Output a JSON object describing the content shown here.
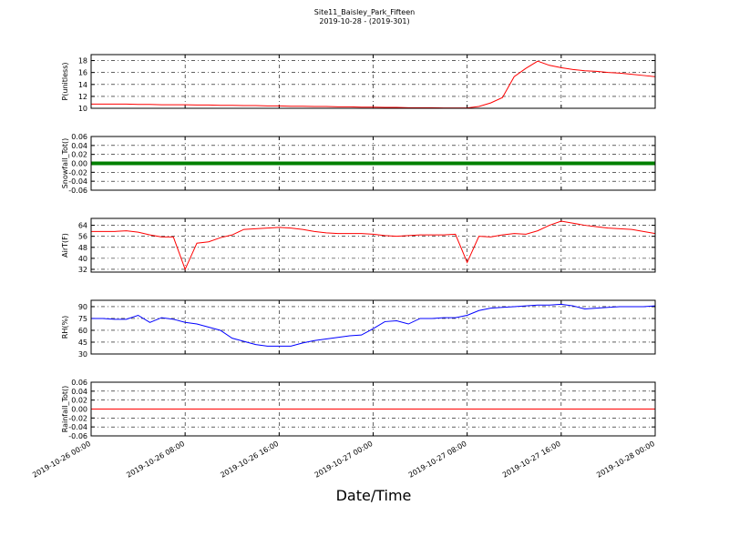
{
  "title": "Site11_Baisley_Park_Fifteen",
  "subtitle": "2019-10-28 - (2019-301)",
  "xlabel": "Date/Time",
  "chart_data": [
    {
      "type": "line",
      "ylabel": "P(unitless)",
      "color": "#ff0000",
      "grid": true,
      "x": [
        "2019-10-26 00:00",
        "2019-10-26 01:00",
        "2019-10-26 02:00",
        "2019-10-26 03:00",
        "2019-10-26 04:00",
        "2019-10-26 05:00",
        "2019-10-26 06:00",
        "2019-10-26 07:00",
        "2019-10-26 08:00",
        "2019-10-26 09:00",
        "2019-10-26 10:00",
        "2019-10-26 11:00",
        "2019-10-26 12:00",
        "2019-10-26 13:00",
        "2019-10-26 14:00",
        "2019-10-26 15:00",
        "2019-10-26 16:00",
        "2019-10-26 17:00",
        "2019-10-26 18:00",
        "2019-10-26 19:00",
        "2019-10-26 20:00",
        "2019-10-26 21:00",
        "2019-10-26 22:00",
        "2019-10-26 23:00",
        "2019-10-27 00:00",
        "2019-10-27 01:00",
        "2019-10-27 02:00",
        "2019-10-27 03:00",
        "2019-10-27 04:00",
        "2019-10-27 05:00",
        "2019-10-27 06:00",
        "2019-10-27 07:00",
        "2019-10-27 08:00",
        "2019-10-27 09:00",
        "2019-10-27 10:00",
        "2019-10-27 11:00",
        "2019-10-27 12:00",
        "2019-10-27 13:00",
        "2019-10-27 14:00",
        "2019-10-27 15:00",
        "2019-10-27 16:00",
        "2019-10-27 17:00",
        "2019-10-27 18:00",
        "2019-10-27 19:00",
        "2019-10-27 20:00",
        "2019-10-27 21:00",
        "2019-10-27 22:00",
        "2019-10-27 23:00",
        "2019-10-28 00:00"
      ],
      "xlim": [
        "2019-10-26 00:00",
        "2019-10-28 00:00"
      ],
      "xticks": [
        "2019-10-26 00:00",
        "2019-10-26 08:00",
        "2019-10-26 16:00",
        "2019-10-27 00:00",
        "2019-10-27 08:00",
        "2019-10-27 16:00",
        "2019-10-28 00:00"
      ],
      "ylim": [
        10,
        19
      ],
      "yticks": [
        10,
        12,
        14,
        16,
        18
      ],
      "values": [
        10.7,
        10.7,
        10.7,
        10.7,
        10.65,
        10.65,
        10.6,
        10.6,
        10.6,
        10.55,
        10.55,
        10.5,
        10.5,
        10.45,
        10.45,
        10.4,
        10.4,
        10.35,
        10.35,
        10.3,
        10.3,
        10.25,
        10.25,
        10.2,
        10.2,
        10.15,
        10.15,
        10.1,
        10.1,
        10.1,
        10.05,
        10.05,
        10.05,
        10.3,
        10.9,
        11.8,
        15.3,
        16.7,
        17.9,
        17.2,
        16.8,
        16.5,
        16.3,
        16.2,
        16.0,
        15.9,
        15.7,
        15.5,
        15.3
      ]
    },
    {
      "type": "line",
      "ylabel": "Snowfall_Tot()",
      "color": "#008000",
      "grid": true,
      "thick": true,
      "x": [
        "2019-10-26 00:00",
        "2019-10-26 01:00",
        "2019-10-26 02:00",
        "2019-10-26 03:00",
        "2019-10-26 04:00",
        "2019-10-26 05:00",
        "2019-10-26 06:00",
        "2019-10-26 07:00",
        "2019-10-26 08:00",
        "2019-10-26 09:00",
        "2019-10-26 10:00",
        "2019-10-26 11:00",
        "2019-10-26 12:00",
        "2019-10-26 13:00",
        "2019-10-26 14:00",
        "2019-10-26 15:00",
        "2019-10-26 16:00",
        "2019-10-26 17:00",
        "2019-10-26 18:00",
        "2019-10-26 19:00",
        "2019-10-26 20:00",
        "2019-10-26 21:00",
        "2019-10-26 22:00",
        "2019-10-26 23:00",
        "2019-10-27 00:00",
        "2019-10-27 01:00",
        "2019-10-27 02:00",
        "2019-10-27 03:00",
        "2019-10-27 04:00",
        "2019-10-27 05:00",
        "2019-10-27 06:00",
        "2019-10-27 07:00",
        "2019-10-27 08:00",
        "2019-10-27 09:00",
        "2019-10-27 10:00",
        "2019-10-27 11:00",
        "2019-10-27 12:00",
        "2019-10-27 13:00",
        "2019-10-27 14:00",
        "2019-10-27 15:00",
        "2019-10-27 16:00",
        "2019-10-27 17:00",
        "2019-10-27 18:00",
        "2019-10-27 19:00",
        "2019-10-27 20:00",
        "2019-10-27 21:00",
        "2019-10-27 22:00",
        "2019-10-27 23:00",
        "2019-10-28 00:00"
      ],
      "xlim": [
        "2019-10-26 00:00",
        "2019-10-28 00:00"
      ],
      "xticks": [
        "2019-10-26 00:00",
        "2019-10-26 08:00",
        "2019-10-26 16:00",
        "2019-10-27 00:00",
        "2019-10-27 08:00",
        "2019-10-27 16:00",
        "2019-10-28 00:00"
      ],
      "ylim": [
        -0.06,
        0.06
      ],
      "yticks": [
        -0.06,
        -0.04,
        -0.02,
        {
          "value": 0,
          "label": "0.00"
        },
        0.02,
        0.04,
        0.06
      ],
      "values": [
        0,
        0,
        0,
        0,
        0,
        0,
        0,
        0,
        0,
        0,
        0,
        0,
        0,
        0,
        0,
        0,
        0,
        0,
        0,
        0,
        0,
        0,
        0,
        0,
        0,
        0,
        0,
        0,
        0,
        0,
        0,
        0,
        0,
        0,
        0,
        0,
        0,
        0,
        0,
        0,
        0,
        0,
        0,
        0,
        0,
        0,
        0,
        0,
        0
      ]
    },
    {
      "type": "line",
      "ylabel": "AirT(F)",
      "color": "#ff0000",
      "grid": true,
      "x": [
        "2019-10-26 00:00",
        "2019-10-26 01:00",
        "2019-10-26 02:00",
        "2019-10-26 03:00",
        "2019-10-26 04:00",
        "2019-10-26 05:00",
        "2019-10-26 06:00",
        "2019-10-26 07:00",
        "2019-10-26 08:00",
        "2019-10-26 09:00",
        "2019-10-26 10:00",
        "2019-10-26 11:00",
        "2019-10-26 12:00",
        "2019-10-26 13:00",
        "2019-10-26 14:00",
        "2019-10-26 15:00",
        "2019-10-26 16:00",
        "2019-10-26 17:00",
        "2019-10-26 18:00",
        "2019-10-26 19:00",
        "2019-10-26 20:00",
        "2019-10-26 21:00",
        "2019-10-26 22:00",
        "2019-10-26 23:00",
        "2019-10-27 00:00",
        "2019-10-27 01:00",
        "2019-10-27 02:00",
        "2019-10-27 03:00",
        "2019-10-27 04:00",
        "2019-10-27 05:00",
        "2019-10-27 06:00",
        "2019-10-27 07:00",
        "2019-10-27 08:00",
        "2019-10-27 09:00",
        "2019-10-27 10:00",
        "2019-10-27 11:00",
        "2019-10-27 12:00",
        "2019-10-27 13:00",
        "2019-10-27 14:00",
        "2019-10-27 15:00",
        "2019-10-27 16:00",
        "2019-10-27 17:00",
        "2019-10-27 18:00",
        "2019-10-27 19:00",
        "2019-10-27 20:00",
        "2019-10-27 21:00",
        "2019-10-27 22:00",
        "2019-10-27 23:00",
        "2019-10-28 00:00"
      ],
      "xlim": [
        "2019-10-26 00:00",
        "2019-10-28 00:00"
      ],
      "xticks": [
        "2019-10-26 00:00",
        "2019-10-26 08:00",
        "2019-10-26 16:00",
        "2019-10-27 00:00",
        "2019-10-27 08:00",
        "2019-10-27 16:00",
        "2019-10-28 00:00"
      ],
      "ylim": [
        30,
        69
      ],
      "yticks": [
        32,
        40,
        48,
        56,
        64
      ],
      "values": [
        59.5,
        59.5,
        59.5,
        60,
        59,
        57,
        55.5,
        55.5,
        32,
        51,
        52,
        55,
        57,
        61,
        61.5,
        62,
        62.5,
        62,
        61,
        59.5,
        58.5,
        58,
        58,
        58,
        57.5,
        56.5,
        56,
        56.5,
        57,
        57,
        57,
        57.5,
        37,
        56,
        55.5,
        57,
        58,
        57.5,
        60,
        64,
        67,
        65.5,
        64,
        63,
        62,
        61.5,
        61,
        59.5,
        58
      ]
    },
    {
      "type": "line",
      "ylabel": "RH(%)",
      "color": "#0000ff",
      "grid": true,
      "x": [
        "2019-10-26 00:00",
        "2019-10-26 01:00",
        "2019-10-26 02:00",
        "2019-10-26 03:00",
        "2019-10-26 04:00",
        "2019-10-26 05:00",
        "2019-10-26 06:00",
        "2019-10-26 07:00",
        "2019-10-26 08:00",
        "2019-10-26 09:00",
        "2019-10-26 10:00",
        "2019-10-26 11:00",
        "2019-10-26 12:00",
        "2019-10-26 13:00",
        "2019-10-26 14:00",
        "2019-10-26 15:00",
        "2019-10-26 16:00",
        "2019-10-26 17:00",
        "2019-10-26 18:00",
        "2019-10-26 19:00",
        "2019-10-26 20:00",
        "2019-10-26 21:00",
        "2019-10-26 22:00",
        "2019-10-26 23:00",
        "2019-10-27 00:00",
        "2019-10-27 01:00",
        "2019-10-27 02:00",
        "2019-10-27 03:00",
        "2019-10-27 04:00",
        "2019-10-27 05:00",
        "2019-10-27 06:00",
        "2019-10-27 07:00",
        "2019-10-27 08:00",
        "2019-10-27 09:00",
        "2019-10-27 10:00",
        "2019-10-27 11:00",
        "2019-10-27 12:00",
        "2019-10-27 13:00",
        "2019-10-27 14:00",
        "2019-10-27 15:00",
        "2019-10-27 16:00",
        "2019-10-27 17:00",
        "2019-10-27 18:00",
        "2019-10-27 19:00",
        "2019-10-27 20:00",
        "2019-10-27 21:00",
        "2019-10-27 22:00",
        "2019-10-27 23:00",
        "2019-10-28 00:00"
      ],
      "xlim": [
        "2019-10-26 00:00",
        "2019-10-28 00:00"
      ],
      "xticks": [
        "2019-10-26 00:00",
        "2019-10-26 08:00",
        "2019-10-26 16:00",
        "2019-10-27 00:00",
        "2019-10-27 08:00",
        "2019-10-27 16:00",
        "2019-10-28 00:00"
      ],
      "ylim": [
        30,
        98
      ],
      "yticks": [
        30,
        45,
        60,
        75,
        90
      ],
      "values": [
        75,
        75,
        74,
        74,
        79,
        70,
        76,
        74,
        70,
        68,
        64,
        60,
        50,
        46,
        42,
        40,
        40,
        40,
        44,
        47,
        49,
        51,
        53,
        54,
        62,
        71,
        72,
        68,
        75,
        75,
        76,
        76,
        79,
        85,
        88,
        89,
        90,
        91,
        92,
        92,
        93,
        91,
        87,
        88,
        89,
        90,
        90,
        90,
        91
      ]
    },
    {
      "type": "line",
      "ylabel": "Rainfall_Tot()",
      "color": "#ff0000",
      "grid": true,
      "show_xtick_labels": true,
      "x": [
        "2019-10-26 00:00",
        "2019-10-26 01:00",
        "2019-10-26 02:00",
        "2019-10-26 03:00",
        "2019-10-26 04:00",
        "2019-10-26 05:00",
        "2019-10-26 06:00",
        "2019-10-26 07:00",
        "2019-10-26 08:00",
        "2019-10-26 09:00",
        "2019-10-26 10:00",
        "2019-10-26 11:00",
        "2019-10-26 12:00",
        "2019-10-26 13:00",
        "2019-10-26 14:00",
        "2019-10-26 15:00",
        "2019-10-26 16:00",
        "2019-10-26 17:00",
        "2019-10-26 18:00",
        "2019-10-26 19:00",
        "2019-10-26 20:00",
        "2019-10-26 21:00",
        "2019-10-26 22:00",
        "2019-10-26 23:00",
        "2019-10-27 00:00",
        "2019-10-27 01:00",
        "2019-10-27 02:00",
        "2019-10-27 03:00",
        "2019-10-27 04:00",
        "2019-10-27 05:00",
        "2019-10-27 06:00",
        "2019-10-27 07:00",
        "2019-10-27 08:00",
        "2019-10-27 09:00",
        "2019-10-27 10:00",
        "2019-10-27 11:00",
        "2019-10-27 12:00",
        "2019-10-27 13:00",
        "2019-10-27 14:00",
        "2019-10-27 15:00",
        "2019-10-27 16:00",
        "2019-10-27 17:00",
        "2019-10-27 18:00",
        "2019-10-27 19:00",
        "2019-10-27 20:00",
        "2019-10-27 21:00",
        "2019-10-27 22:00",
        "2019-10-27 23:00",
        "2019-10-28 00:00"
      ],
      "xlim": [
        "2019-10-26 00:00",
        "2019-10-28 00:00"
      ],
      "xticks": [
        "2019-10-26 00:00",
        "2019-10-26 08:00",
        "2019-10-26 16:00",
        "2019-10-27 00:00",
        "2019-10-27 08:00",
        "2019-10-27 16:00",
        "2019-10-28 00:00"
      ],
      "ylim": [
        -0.06,
        0.06
      ],
      "yticks": [
        -0.06,
        -0.04,
        -0.02,
        {
          "value": 0,
          "label": "0.00"
        },
        0.02,
        0.04,
        0.06
      ],
      "values": [
        0,
        0,
        0,
        0,
        0,
        0,
        0,
        0,
        0,
        0,
        0,
        0,
        0,
        0,
        0,
        0,
        0,
        0,
        0,
        0,
        0,
        0,
        0,
        0,
        0,
        0,
        0,
        0,
        0,
        0,
        0,
        0,
        0,
        0,
        0,
        0,
        0,
        0,
        0,
        0,
        0,
        0,
        0,
        0,
        0,
        0,
        0,
        0,
        0
      ]
    }
  ]
}
